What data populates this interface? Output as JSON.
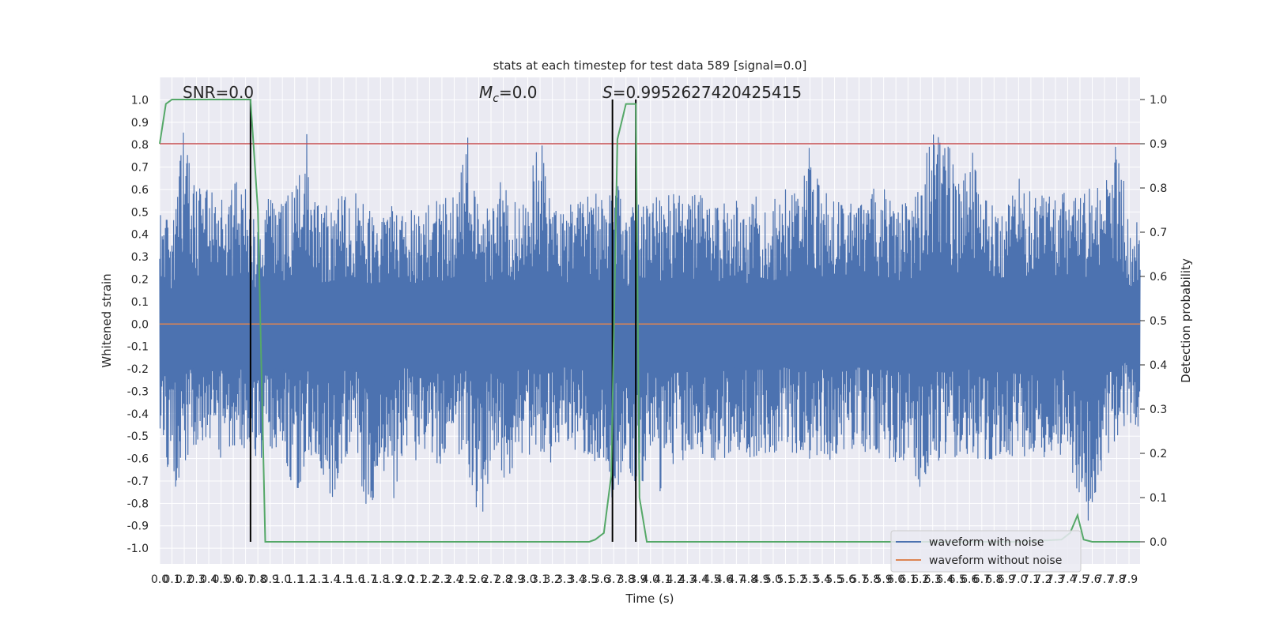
{
  "chart_data": {
    "type": "line",
    "title": "stats at each timestep for test data 589 [signal=0.0]",
    "xlabel": "Time (s)",
    "ylabel": "Whitened strain",
    "y2label": "Detection probability",
    "xlim": [
      0.0,
      7.99
    ],
    "ylim": [
      -1.07,
      1.1
    ],
    "y2lim": [
      -0.05,
      1.05
    ],
    "grid": true,
    "legend_position": "lower right",
    "annotations": {
      "snr": "SNR=0.0",
      "mc_symbol": "M",
      "mc_sub": "c",
      "mc_value": "=0.0",
      "s_symbol": "S",
      "s_value": "=0.9952627420425415"
    },
    "x_ticks": [
      "0.0",
      "0.1",
      "0.2",
      "0.3",
      "0.4",
      "0.5",
      "0.6",
      "0.7",
      "0.8",
      "0.9",
      "1.0",
      "1.1",
      "1.2",
      "1.3",
      "1.4",
      "1.5",
      "1.6",
      "1.7",
      "1.8",
      "1.9",
      "2.0",
      "2.1",
      "2.2",
      "2.3",
      "2.4",
      "2.5",
      "2.6",
      "2.7",
      "2.8",
      "2.9",
      "3.0",
      "3.1",
      "3.2",
      "3.3",
      "3.4",
      "3.5",
      "3.6",
      "3.7",
      "3.8",
      "3.9",
      "4.0",
      "4.1",
      "4.2",
      "4.3",
      "4.4",
      "4.5",
      "4.6",
      "4.7",
      "4.8",
      "4.9",
      "5.0",
      "5.1",
      "5.2",
      "5.3",
      "5.4",
      "5.5",
      "5.6",
      "5.7",
      "5.8",
      "5.9",
      "6.0",
      "6.1",
      "6.2",
      "6.3",
      "6.4",
      "6.5",
      "6.6",
      "6.7",
      "6.8",
      "6.9",
      "7.0",
      "7.1",
      "7.2",
      "7.3",
      "7.4",
      "7.5",
      "7.6",
      "7.7",
      "7.8",
      "7.9"
    ],
    "y_ticks": [
      "1.0",
      "0.9",
      "0.8",
      "0.7",
      "0.6",
      "0.5",
      "0.4",
      "0.3",
      "0.2",
      "0.1",
      "0.0",
      "-0.1",
      "-0.2",
      "-0.3",
      "-0.4",
      "-0.5",
      "-0.6",
      "-0.7",
      "-0.8",
      "-0.9",
      "-1.0"
    ],
    "y2_ticks": [
      "1.0",
      "0.9",
      "0.8",
      "0.7",
      "0.6",
      "0.5",
      "0.4",
      "0.3",
      "0.2",
      "0.1",
      "0.0"
    ],
    "threshold": 0.9,
    "vertical_markers": [
      0.74,
      3.69,
      3.88
    ],
    "series": [
      {
        "name": "waveform with noise",
        "color": "#4c72b0",
        "axis": "left",
        "envelope_x": [
          0.0,
          0.1,
          0.2,
          0.3,
          0.4,
          0.5,
          0.6,
          0.7,
          0.8,
          0.9,
          1.0,
          1.1,
          1.2,
          1.3,
          1.4,
          1.5,
          1.6,
          1.7,
          1.8,
          1.9,
          2.0,
          2.1,
          2.2,
          2.3,
          2.4,
          2.5,
          2.6,
          2.7,
          2.8,
          2.9,
          3.0,
          3.1,
          3.2,
          3.3,
          3.4,
          3.5,
          3.6,
          3.7,
          3.8,
          3.9,
          4.0,
          4.1,
          4.2,
          4.3,
          4.4,
          4.5,
          4.6,
          4.7,
          4.8,
          4.9,
          5.0,
          5.1,
          5.2,
          5.3,
          5.4,
          5.5,
          5.6,
          5.7,
          5.8,
          5.9,
          6.0,
          6.1,
          6.2,
          6.3,
          6.4,
          6.5,
          6.6,
          6.7,
          6.8,
          6.9,
          7.0,
          7.1,
          7.2,
          7.3,
          7.4,
          7.5,
          7.6,
          7.7,
          7.8,
          7.9,
          7.99
        ],
        "envelope_max": [
          0.52,
          0.45,
          1.0,
          0.62,
          0.6,
          0.55,
          0.62,
          0.67,
          0.42,
          0.6,
          0.55,
          0.62,
          0.97,
          0.5,
          0.55,
          0.58,
          0.6,
          0.52,
          0.5,
          0.58,
          0.55,
          0.52,
          0.6,
          0.55,
          0.6,
          0.86,
          0.58,
          0.5,
          0.68,
          0.55,
          0.6,
          0.87,
          0.55,
          0.5,
          0.6,
          0.62,
          0.55,
          0.72,
          0.45,
          0.6,
          0.58,
          0.55,
          0.6,
          0.55,
          0.6,
          0.5,
          0.58,
          0.55,
          0.52,
          0.6,
          0.55,
          0.62,
          0.58,
          0.8,
          0.6,
          0.55,
          0.58,
          0.52,
          0.6,
          0.62,
          0.55,
          0.58,
          0.6,
          0.94,
          0.9,
          0.62,
          0.83,
          0.6,
          0.58,
          0.6,
          0.65,
          0.6,
          0.62,
          0.55,
          0.6,
          0.58,
          0.62,
          0.6,
          0.86,
          0.47,
          0.46
        ],
        "envelope_min": [
          -0.52,
          -0.77,
          -0.62,
          -0.55,
          -0.5,
          -0.6,
          -0.55,
          -0.6,
          -0.62,
          -0.58,
          -0.55,
          -0.8,
          -0.6,
          -0.62,
          -0.8,
          -0.6,
          -0.55,
          -0.92,
          -0.6,
          -0.8,
          -0.55,
          -0.62,
          -0.6,
          -0.65,
          -0.58,
          -0.6,
          -0.97,
          -0.62,
          -0.77,
          -0.6,
          -0.58,
          -0.6,
          -0.62,
          -0.55,
          -0.6,
          -0.58,
          -0.65,
          -0.8,
          -0.6,
          -0.78,
          -0.58,
          -0.82,
          -0.62,
          -0.6,
          -0.58,
          -0.62,
          -0.6,
          -0.55,
          -0.6,
          -0.58,
          -0.6,
          -0.55,
          -0.62,
          -0.6,
          -0.58,
          -0.62,
          -0.6,
          -0.55,
          -0.6,
          -0.58,
          -0.62,
          -0.6,
          -0.82,
          -0.6,
          -0.62,
          -0.6,
          -0.58,
          -0.65,
          -0.62,
          -0.6,
          -0.65,
          -0.6,
          -0.62,
          -0.58,
          -0.6,
          -0.78,
          -0.97,
          -0.62,
          -0.6,
          -0.45,
          -0.46
        ]
      },
      {
        "name": "waveform without noise",
        "color": "#dd8452",
        "axis": "left",
        "x": [
          0.0,
          7.99
        ],
        "y": [
          0.0,
          0.0
        ]
      },
      {
        "name": "Detection probability",
        "color": "#55a868",
        "axis": "right",
        "x": [
          0.0,
          0.05,
          0.1,
          0.2,
          0.3,
          0.4,
          0.5,
          0.6,
          0.7,
          0.74,
          0.8,
          0.86,
          0.9,
          1.0,
          2.0,
          3.0,
          3.5,
          3.55,
          3.62,
          3.68,
          3.73,
          3.8,
          3.85,
          3.88,
          3.91,
          3.97,
          4.0,
          5.0,
          6.0,
          7.0,
          7.35,
          7.42,
          7.48,
          7.53,
          7.6,
          7.8,
          7.99
        ],
        "y": [
          0.9,
          0.99,
          1.0,
          1.0,
          1.0,
          1.0,
          1.0,
          1.0,
          1.0,
          1.0,
          0.75,
          0.0,
          0.0,
          0.0,
          0.0,
          0.0,
          0.0,
          0.005,
          0.02,
          0.15,
          0.91,
          0.99,
          0.99,
          0.99,
          0.1,
          0.0,
          0.0,
          0.0,
          0.0,
          0.0,
          0.005,
          0.02,
          0.06,
          0.005,
          0.0,
          0.0,
          0.0
        ]
      }
    ]
  }
}
